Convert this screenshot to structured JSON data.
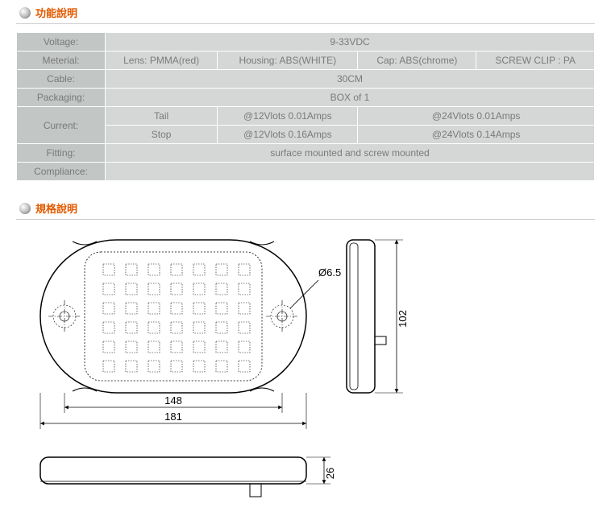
{
  "headers": {
    "func": "功能說明",
    "spec": "規格說明"
  },
  "table": {
    "voltage_label": "Voltage:",
    "voltage_val": "9-33VDC",
    "material_label": "Meterial:",
    "material_lens": "Lens:  PMMA(red)",
    "material_housing": "Housing:  ABS(WHITE)",
    "material_cap": "Cap:  ABS(chrome)",
    "material_screw": "SCREW CLIP : PA",
    "cable_label": "Cable:",
    "cable_val": "30CM",
    "packaging_label": "Packaging:",
    "packaging_val": "BOX of 1",
    "current_label": "Current:",
    "current_tail": "Tail",
    "current_tail_12v": "@12Vlots  0.01Amps",
    "current_tail_24v": "@24Vlots  0.01Amps",
    "current_stop": "Stop",
    "current_stop_12v": "@12Vlots  0.16Amps",
    "current_stop_24v": "@24Vlots  0.14Amps",
    "fitting_label": "Fitting:",
    "fitting_val": "surface mounted and screw mounted",
    "compliance_label": "Compliance:"
  },
  "dims": {
    "hole_dia": "Ø6.5",
    "width_inner": "148",
    "width_outer": "181",
    "height": "102",
    "depth": "26"
  },
  "colors": {
    "accent": "#e25a00",
    "cell_bg": "#d4d7d6",
    "label_bg": "#c2c6c4",
    "text": "#7a7a7a",
    "line": "#000000"
  }
}
